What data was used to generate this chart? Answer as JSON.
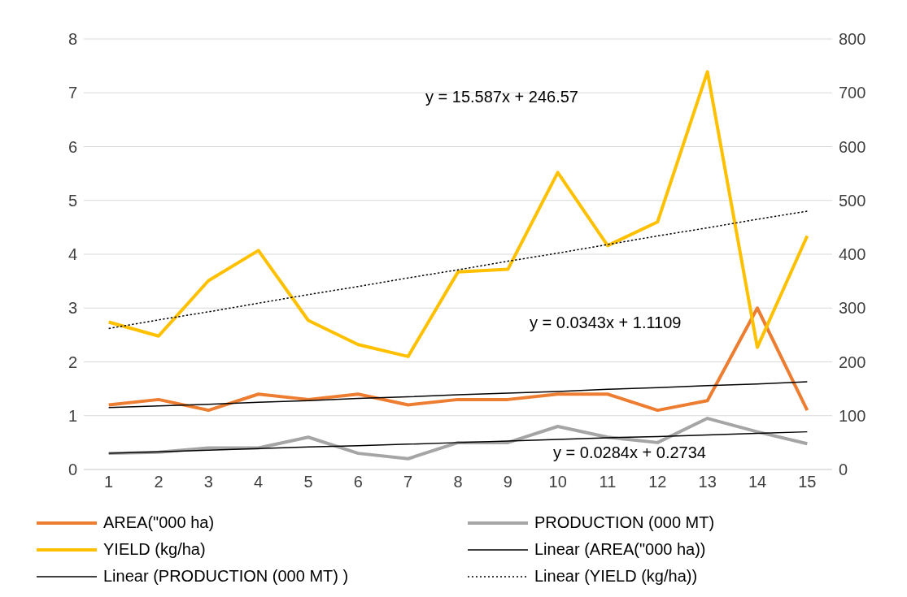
{
  "chart_data": {
    "type": "line",
    "x": [
      1,
      2,
      3,
      4,
      5,
      6,
      7,
      8,
      9,
      10,
      11,
      12,
      13,
      14,
      15
    ],
    "xlim": [
      0.5,
      15.5
    ],
    "xticks": [
      1,
      2,
      3,
      4,
      5,
      6,
      7,
      8,
      9,
      10,
      11,
      12,
      13,
      14,
      15
    ],
    "ylim": [
      0,
      8
    ],
    "yticks": [
      0,
      1,
      2,
      3,
      4,
      5,
      6,
      7,
      8
    ],
    "y2lim": [
      0,
      800
    ],
    "y2ticks": [
      0,
      100,
      200,
      300,
      400,
      500,
      600,
      700,
      800
    ],
    "grid": "y",
    "legend": "bottom",
    "marker": "none",
    "series": [
      {
        "name": "AREA(\"000 ha)",
        "color": "#ed7d31",
        "values": [
          1.2,
          1.3,
          1.1,
          1.4,
          1.3,
          1.4,
          1.2,
          1.3,
          1.3,
          1.4,
          1.4,
          1.1,
          1.28,
          3.0,
          1.1
        ]
      },
      {
        "name": "PRODUCTION (000 MT)",
        "color": "#a5a5a5",
        "values": [
          0.3,
          0.32,
          0.4,
          0.4,
          0.6,
          0.3,
          0.2,
          0.5,
          0.5,
          0.8,
          0.6,
          0.5,
          0.95,
          0.7,
          0.48
        ]
      },
      {
        "name": "YIELD (kg/ha)",
        "color": "#ffc000",
        "axis": "y2",
        "values": [
          274,
          248,
          351,
          407,
          277,
          232,
          210,
          367,
          372,
          552,
          416,
          460,
          739,
          227,
          434
        ]
      },
      {
        "name": "Linear (AREA(\"000 ha))",
        "color": "#000000",
        "values": [
          1.15,
          1.18,
          1.21,
          1.25,
          1.28,
          1.32,
          1.35,
          1.39,
          1.42,
          1.45,
          1.49,
          1.52,
          1.56,
          1.59,
          1.63
        ],
        "line_style": "solid"
      },
      {
        "name": "Linear (PRODUCTION (000 MT) )",
        "color": "#000000",
        "values": [
          0.3,
          0.33,
          0.36,
          0.39,
          0.42,
          0.44,
          0.47,
          0.5,
          0.53,
          0.56,
          0.59,
          0.61,
          0.64,
          0.67,
          0.7
        ],
        "line_style": "solid"
      },
      {
        "name": "Linear (YIELD (kg/ha))",
        "color": "#000000",
        "axis": "y2",
        "values": [
          262,
          278,
          293,
          309,
          325,
          340,
          356,
          371,
          387,
          402,
          418,
          434,
          449,
          465,
          480
        ],
        "line_style": "dotted"
      }
    ],
    "annotations": [
      "y = 15.587x + 246.57",
      "y = 0.0343x + 1.1109",
      "y = 0.0284x + 0.2734"
    ]
  }
}
